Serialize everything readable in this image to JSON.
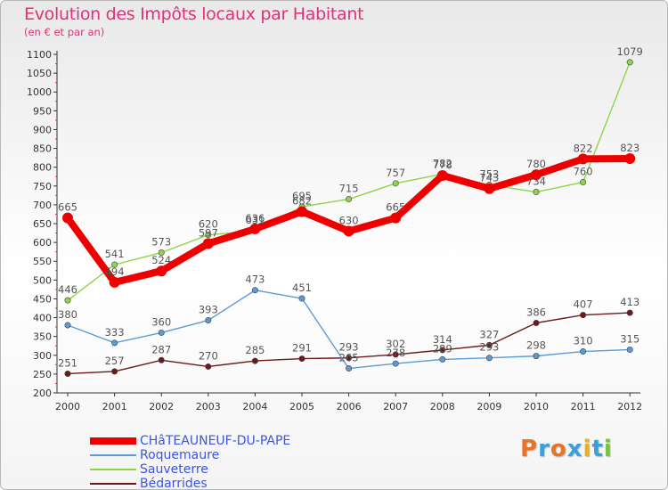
{
  "header": {
    "title": "Evolution des Impôts locaux par Habitant",
    "subtitle": "(en € et par an)"
  },
  "logo": {
    "text": "Proxiti"
  },
  "chart_data": {
    "type": "line",
    "title": "Evolution des Impôts locaux par Habitant",
    "subtitle": "(en € et par an)",
    "xlabel": "",
    "ylabel": "",
    "x": [
      2000,
      2001,
      2002,
      2003,
      2004,
      2005,
      2006,
      2007,
      2008,
      2009,
      2010,
      2011,
      2012
    ],
    "ylim": [
      200,
      1100
    ],
    "yticks": [
      200,
      250,
      300,
      350,
      400,
      450,
      500,
      550,
      600,
      650,
      700,
      750,
      800,
      850,
      900,
      950,
      1000,
      1050,
      1100
    ],
    "grid": false,
    "legend_position": "bottom-left",
    "series": [
      {
        "name": "CHâTEAUNEUF-DU-PAPE",
        "color": "#ee0000",
        "values": [
          665,
          494,
          524,
          597,
          636,
          682,
          630,
          665,
          778,
          743,
          780,
          822,
          823
        ]
      },
      {
        "name": "Roquemaure",
        "color": "#5b9bd5",
        "values": [
          380,
          333,
          360,
          393,
          473,
          451,
          265,
          278,
          289,
          293,
          298,
          310,
          315
        ]
      },
      {
        "name": "Sauveterre",
        "color": "#8fd44a",
        "values": [
          446,
          541,
          573,
          620,
          631,
          695,
          715,
          757,
          782,
          753,
          734,
          760,
          1079
        ]
      },
      {
        "name": "Bédarrides",
        "color": "#6b1a1a",
        "values": [
          251,
          257,
          287,
          270,
          285,
          291,
          293,
          302,
          314,
          327,
          386,
          407,
          413
        ]
      }
    ]
  }
}
